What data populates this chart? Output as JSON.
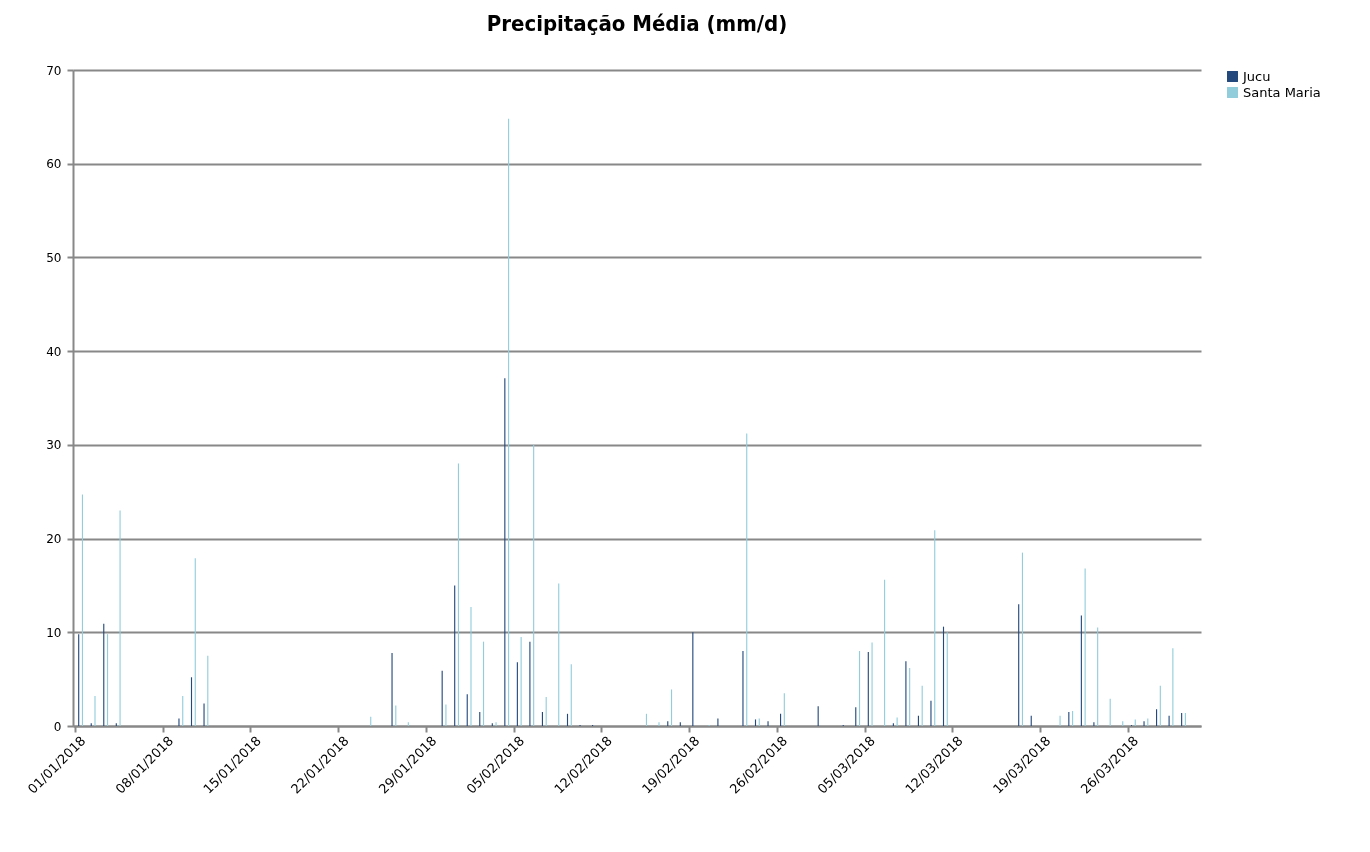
{
  "chart_data": {
    "type": "bar",
    "title": "Precipitação Média (mm/d)",
    "categories": [
      "01/01/2018",
      null,
      null,
      null,
      null,
      null,
      null,
      "08/01/2018",
      null,
      null,
      null,
      null,
      null,
      null,
      "15/01/2018",
      null,
      null,
      null,
      null,
      null,
      null,
      "22/01/2018",
      null,
      null,
      null,
      null,
      null,
      null,
      "29/01/2018",
      null,
      null,
      null,
      null,
      null,
      null,
      "05/02/2018",
      null,
      null,
      null,
      null,
      null,
      null,
      "12/02/2018",
      null,
      null,
      null,
      null,
      null,
      null,
      "19/02/2018",
      null,
      null,
      null,
      null,
      null,
      null,
      "26/02/2018",
      null,
      null,
      null,
      null,
      null,
      null,
      "05/03/2018",
      null,
      null,
      null,
      null,
      null,
      null,
      "12/03/2018",
      null,
      null,
      null,
      null,
      null,
      null,
      "19/03/2018",
      null,
      null,
      null,
      null,
      null,
      null,
      "26/03/2018",
      null,
      null,
      null,
      null,
      null
    ],
    "series": [
      {
        "name": "Jucu",
        "color": "#24497d",
        "values": [
          9.8,
          0.3,
          10.9,
          0.3,
          0,
          0,
          0,
          0,
          0.8,
          5.2,
          2.4,
          0,
          0,
          0,
          0,
          0,
          0,
          0,
          0,
          0,
          0,
          0,
          0,
          0,
          0,
          7.8,
          0,
          0,
          0,
          5.9,
          15.0,
          3.4,
          1.5,
          0.3,
          37.1,
          6.8,
          9.0,
          1.5,
          0,
          1.3,
          0.1,
          0.1,
          0,
          0,
          0,
          0,
          0,
          0.5,
          0.4,
          10.0,
          0,
          0.8,
          0,
          8.0,
          0.7,
          0.5,
          1.3,
          0,
          0,
          2.1,
          0,
          0.1,
          2.0,
          7.9,
          0,
          0.3,
          6.9,
          1.1,
          2.7,
          10.6,
          0,
          0,
          0,
          0,
          0,
          13.0,
          1.1,
          0,
          0,
          1.5,
          11.8,
          0.4,
          0,
          0,
          0.1,
          0.5,
          1.8,
          1.1,
          1.4,
          0
        ]
      },
      {
        "name": "Santa Maria",
        "color": "#92cddc",
        "values": [
          24.7,
          3.2,
          9.8,
          23.0,
          0,
          0,
          0,
          0,
          3.2,
          17.9,
          7.5,
          0,
          0,
          0,
          0,
          0,
          0,
          0,
          0,
          0,
          0,
          0,
          0,
          1.0,
          0,
          2.2,
          0.4,
          0,
          0,
          2.3,
          28.0,
          12.7,
          9.0,
          0.4,
          64.8,
          9.5,
          30.0,
          3.1,
          15.2,
          6.6,
          0,
          0,
          0,
          0,
          0,
          1.3,
          0.4,
          3.9,
          0,
          0,
          0.1,
          0,
          0,
          31.2,
          0.8,
          0,
          3.5,
          0,
          0,
          0,
          0,
          0,
          8.0,
          8.9,
          15.6,
          0.9,
          6.2,
          4.3,
          20.9,
          10.0,
          0,
          0,
          0,
          0,
          0,
          18.5,
          0,
          0,
          1.1,
          1.6,
          16.8,
          10.5,
          2.9,
          0.5,
          0.7,
          0.8,
          4.3,
          8.3,
          1.4,
          0
        ]
      }
    ],
    "ylim": [
      0,
      70
    ],
    "yticks": [
      0,
      10,
      20,
      30,
      40,
      50,
      60,
      70
    ],
    "grid": "y",
    "legend": "right"
  }
}
